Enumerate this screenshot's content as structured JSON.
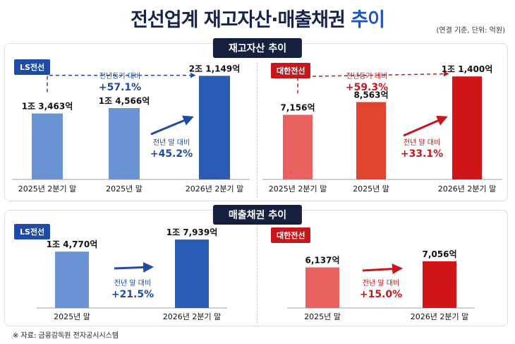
{
  "title": {
    "main": "전선업계 재고자산·매출채권",
    "accent": "추이"
  },
  "unit_note": "(연결 기준, 단위: 억원)",
  "source": "※ 자료: 금융감독원 전자공시시스템",
  "colors": {
    "ls_light": "#6a93d4",
    "ls_dark": "#2a5bb5",
    "ls_arrow": "#1f4aa6",
    "dh_light": "#ea6260",
    "dh_mid": "#e0452f",
    "dh_dark": "#d01518",
    "dh_arrow": "#c8161d"
  },
  "sections": {
    "inventory_title": "재고자산 추이",
    "receivables_title": "매출채권 추이"
  },
  "companies": {
    "ls": "LS전선",
    "dh": "대한전선"
  },
  "chart_data": [
    {
      "type": "bar",
      "id": "inventory-ls",
      "categories": [
        "2025년 2분기 말",
        "2025년 말",
        "2026년 2분기 말"
      ],
      "values": [
        13463,
        14566,
        21149
      ],
      "value_labels": [
        "1조 3,463억",
        "1조 4,566억",
        "2조 1,149억"
      ],
      "ylim": [
        0,
        22500
      ],
      "comparisons": [
        {
          "label": "전년동기 대비",
          "value": "+57.1%"
        },
        {
          "label": "전년 말 대비",
          "value": "+45.2%"
        }
      ]
    },
    {
      "type": "bar",
      "id": "inventory-dh",
      "categories": [
        "2025년 2분기 말",
        "2025년 말",
        "2026년 2분기 말"
      ],
      "values": [
        7156,
        8563,
        11400
      ],
      "value_labels": [
        "7,156억",
        "8,563억",
        "1조 1,400억"
      ],
      "ylim": [
        0,
        12200
      ],
      "comparisons": [
        {
          "label": "전년동기 대비",
          "value": "+59.3%"
        },
        {
          "label": "전년 말 대비",
          "value": "+33.1%"
        }
      ]
    },
    {
      "type": "bar",
      "id": "receivables-ls",
      "categories": [
        "2025년 말",
        "2026년 2분기 말"
      ],
      "values": [
        14770,
        17939
      ],
      "value_labels": [
        "1조 4,770억",
        "1조 7,939억"
      ],
      "ylim": [
        0,
        20000
      ],
      "comparisons": [
        {
          "label": "전년 말 대비",
          "value": "+21.5%"
        }
      ]
    },
    {
      "type": "bar",
      "id": "receivables-dh",
      "categories": [
        "2025년 말",
        "2026년 2분기 말"
      ],
      "values": [
        6137,
        7056
      ],
      "value_labels": [
        "6,137억",
        "7,056억"
      ],
      "ylim": [
        0,
        7900
      ],
      "comparisons": [
        {
          "label": "전년 말 대비",
          "value": "+15.0%"
        }
      ]
    }
  ]
}
